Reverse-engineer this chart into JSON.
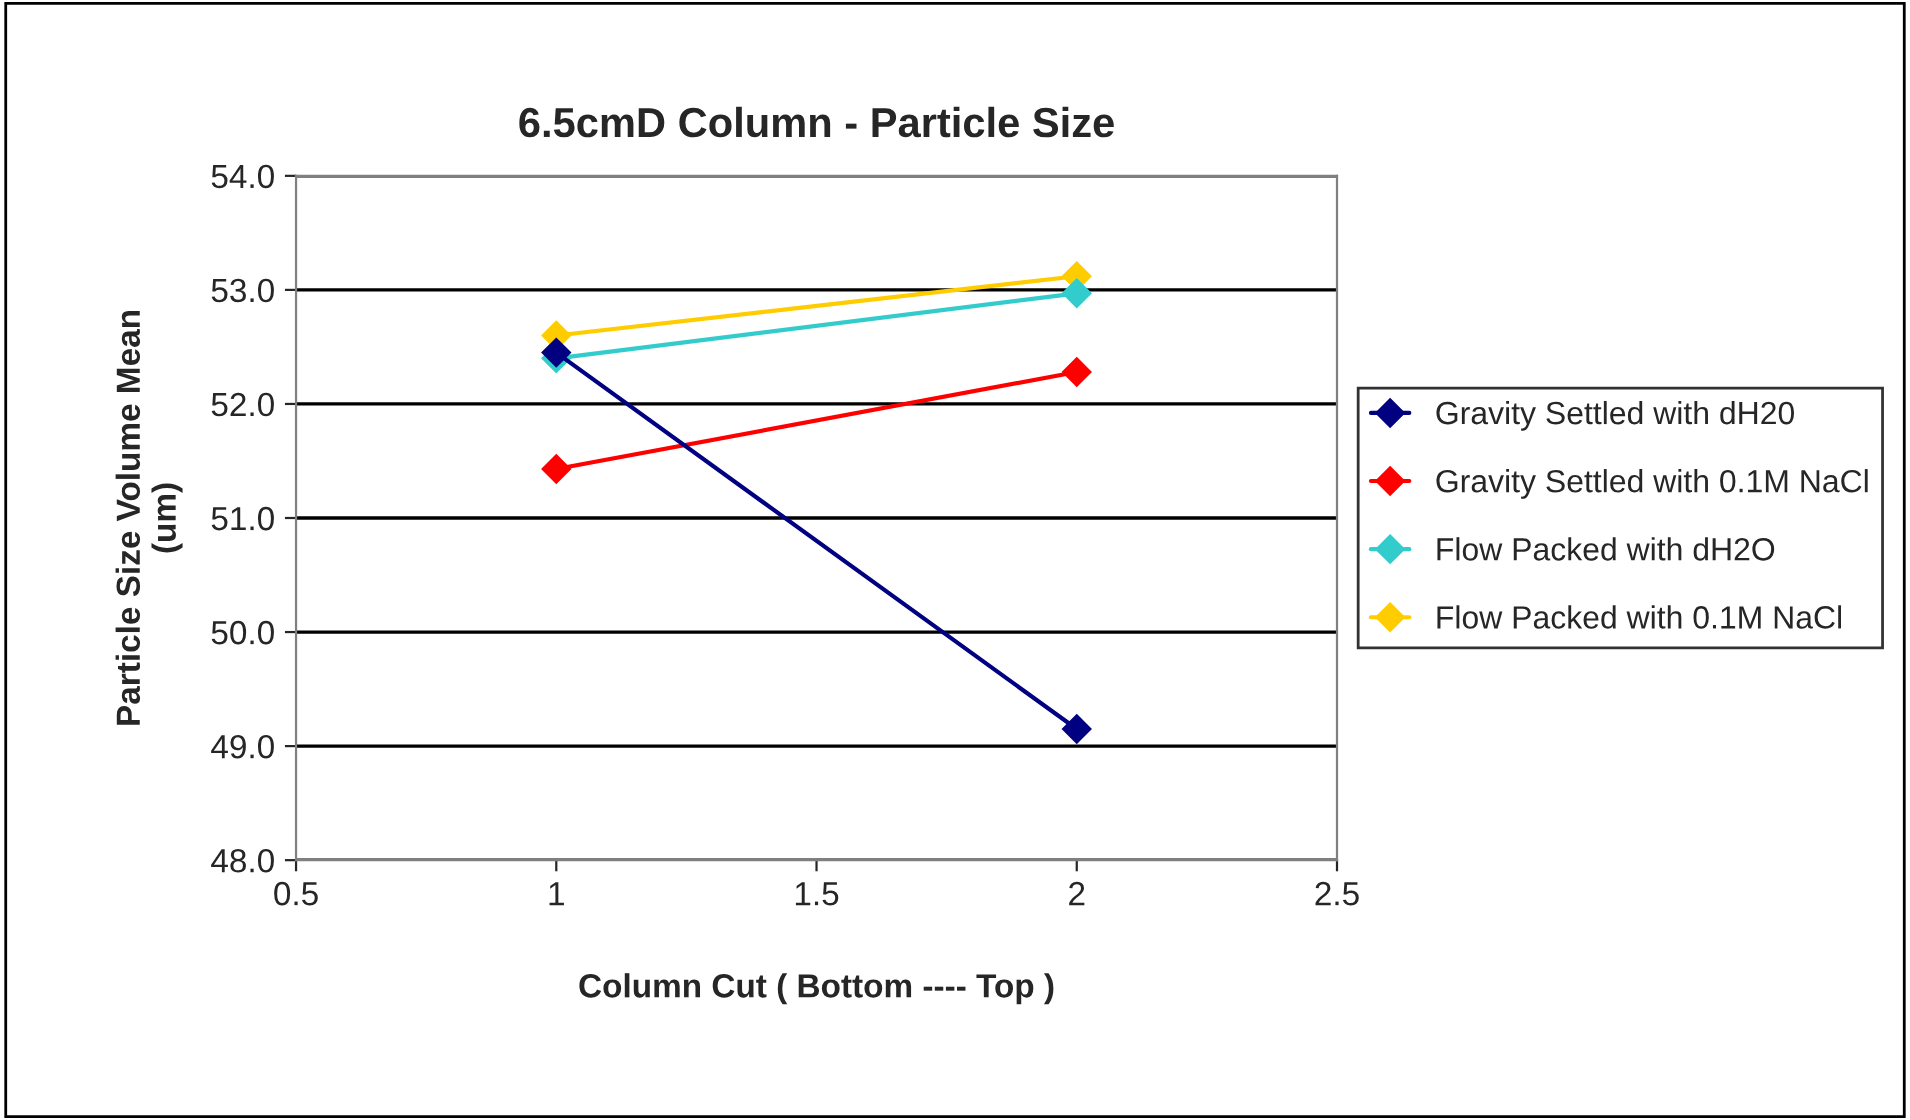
{
  "chart_data": {
    "type": "line",
    "title": "6.5cmD Column - Particle Size",
    "xlabel": "Column Cut ( Bottom ---- Top )",
    "ylabel": "Particle Size Volume Mean\n(um)",
    "x": [
      1,
      2
    ],
    "series": [
      {
        "name": "Gravity Settled with dH20",
        "color": "#000080",
        "values": [
          52.45,
          49.15
        ]
      },
      {
        "name": "Gravity Settled with 0.1M NaCl",
        "color": "#ff0000",
        "values": [
          51.43,
          52.28
        ]
      },
      {
        "name": "Flow Packed with dH2O",
        "color": "#33cccc",
        "values": [
          52.4,
          52.97
        ]
      },
      {
        "name": "Flow Packed with 0.1M NaCl",
        "color": "#ffcc00",
        "values": [
          52.6,
          53.12
        ]
      }
    ],
    "xlim": [
      0.5,
      2.5
    ],
    "xticks": [
      0.5,
      1,
      1.5,
      2,
      2.5
    ],
    "ylim": [
      48,
      54
    ],
    "yticks": [
      {
        "value": 48,
        "label": "48.0"
      },
      {
        "value": 49,
        "label": "49.0"
      },
      {
        "value": 50,
        "label": "50.0"
      },
      {
        "value": 51,
        "label": "51.0"
      },
      {
        "value": 52,
        "label": "52.0"
      },
      {
        "value": 53,
        "label": "53.0"
      },
      {
        "value": 54,
        "label": "54.0"
      }
    ],
    "grid": "y",
    "legend": "right",
    "marker": "diamond",
    "line_style": "solid"
  }
}
